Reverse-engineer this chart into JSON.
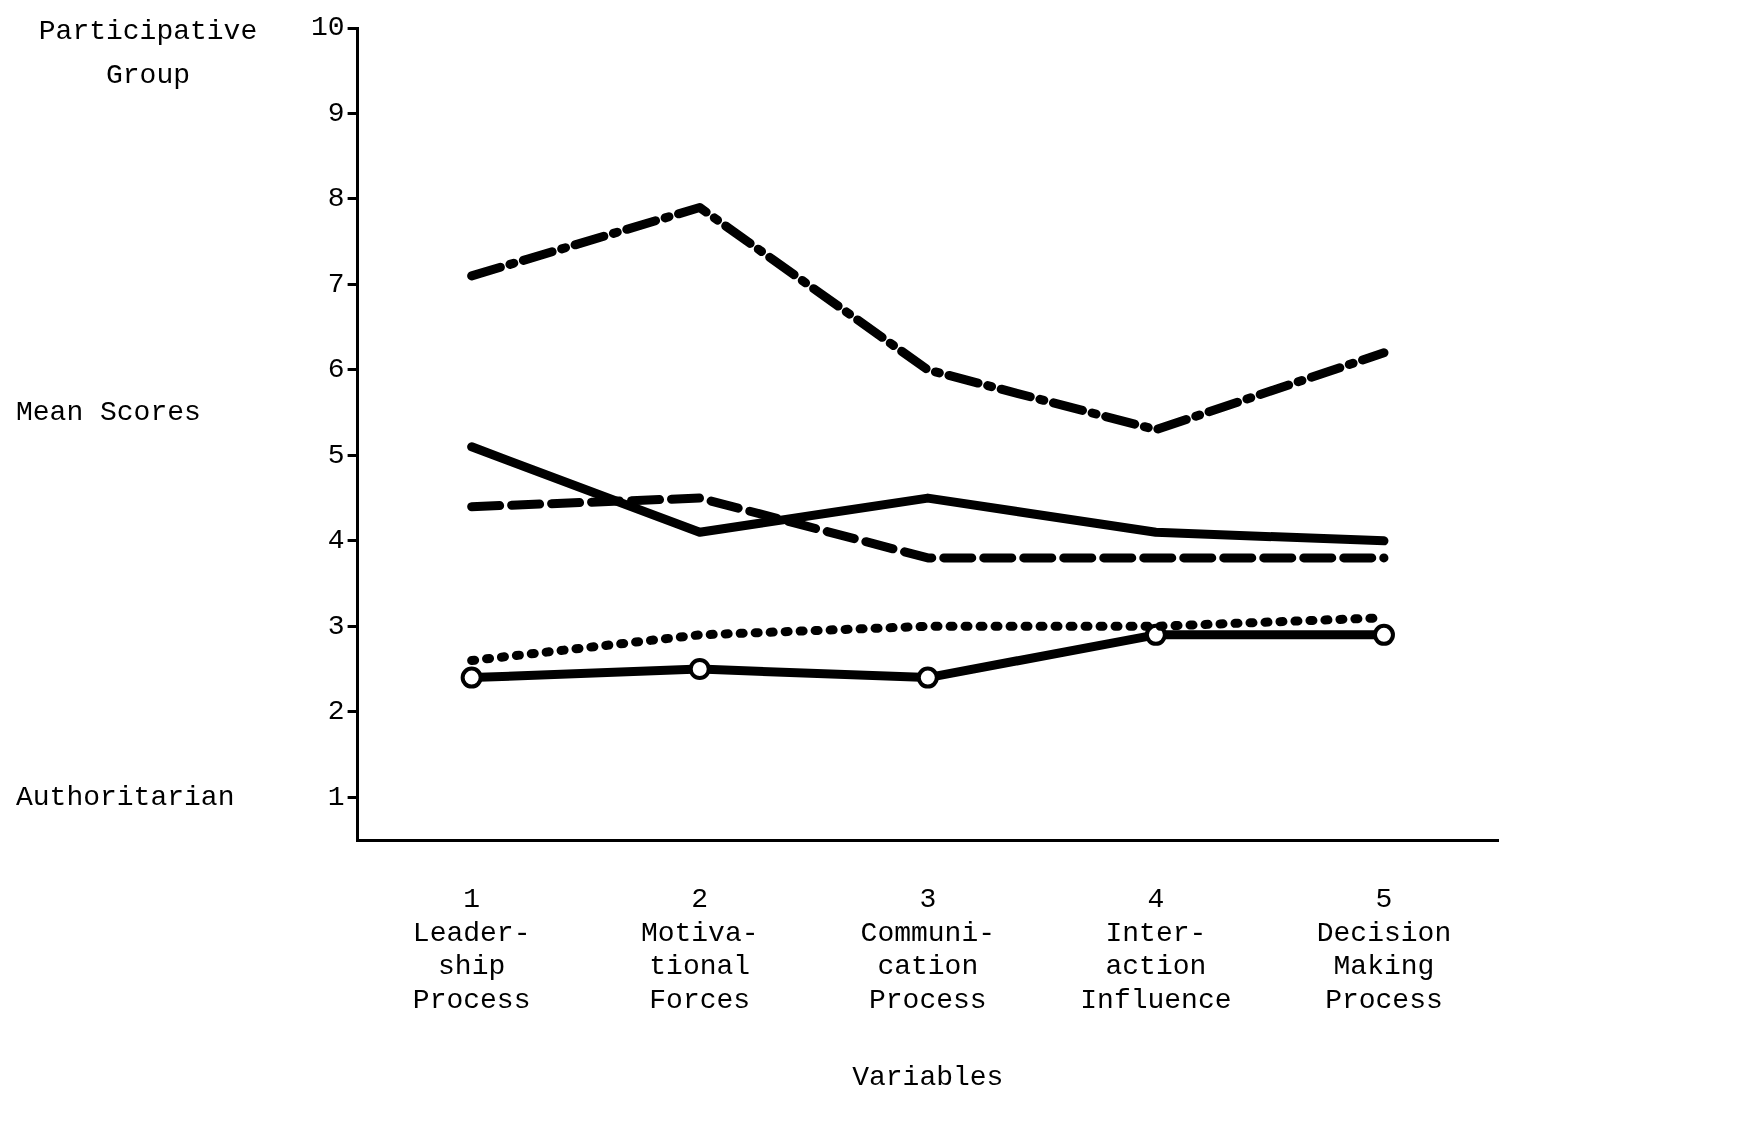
{
  "chart_data": {
    "type": "line",
    "xlabel": "Variables",
    "ylabel": "Mean Scores",
    "annotations": [
      "Participative Group",
      "Authoritarian"
    ],
    "categories": [
      "1\nLeader-\nship\nProcess",
      "2\nMotiva-\ntional\nForces",
      "3\nCommuni-\ncation\nProcess",
      "4\nInter-\naction\nInfluence",
      "5\nDecision\nMaking\nProcess"
    ],
    "series": [
      {
        "color": "#000000",
        "line_style": "dashdot",
        "marker": "none",
        "values": [
          7.1,
          7.9,
          6.0,
          5.3,
          6.2
        ]
      },
      {
        "color": "#000000",
        "line_style": "solid",
        "marker": "none",
        "values": [
          5.1,
          4.1,
          4.5,
          4.1,
          4.0
        ]
      },
      {
        "color": "#000000",
        "line_style": "dashed",
        "marker": "none",
        "values": [
          4.4,
          4.5,
          3.8,
          3.8,
          3.8
        ]
      },
      {
        "color": "#000000",
        "line_style": "dotted",
        "marker": "none",
        "values": [
          2.6,
          2.9,
          3.0,
          3.0,
          3.1
        ]
      },
      {
        "color": "#000000",
        "line_style": "solid",
        "marker": "circle",
        "values": [
          2.4,
          2.5,
          2.4,
          2.9,
          2.9
        ]
      }
    ],
    "ylim": [
      0.5,
      10
    ],
    "yticks": [
      1,
      2,
      3,
      4,
      5,
      6,
      7,
      8,
      9,
      10
    ],
    "grid": false,
    "legend": false
  }
}
